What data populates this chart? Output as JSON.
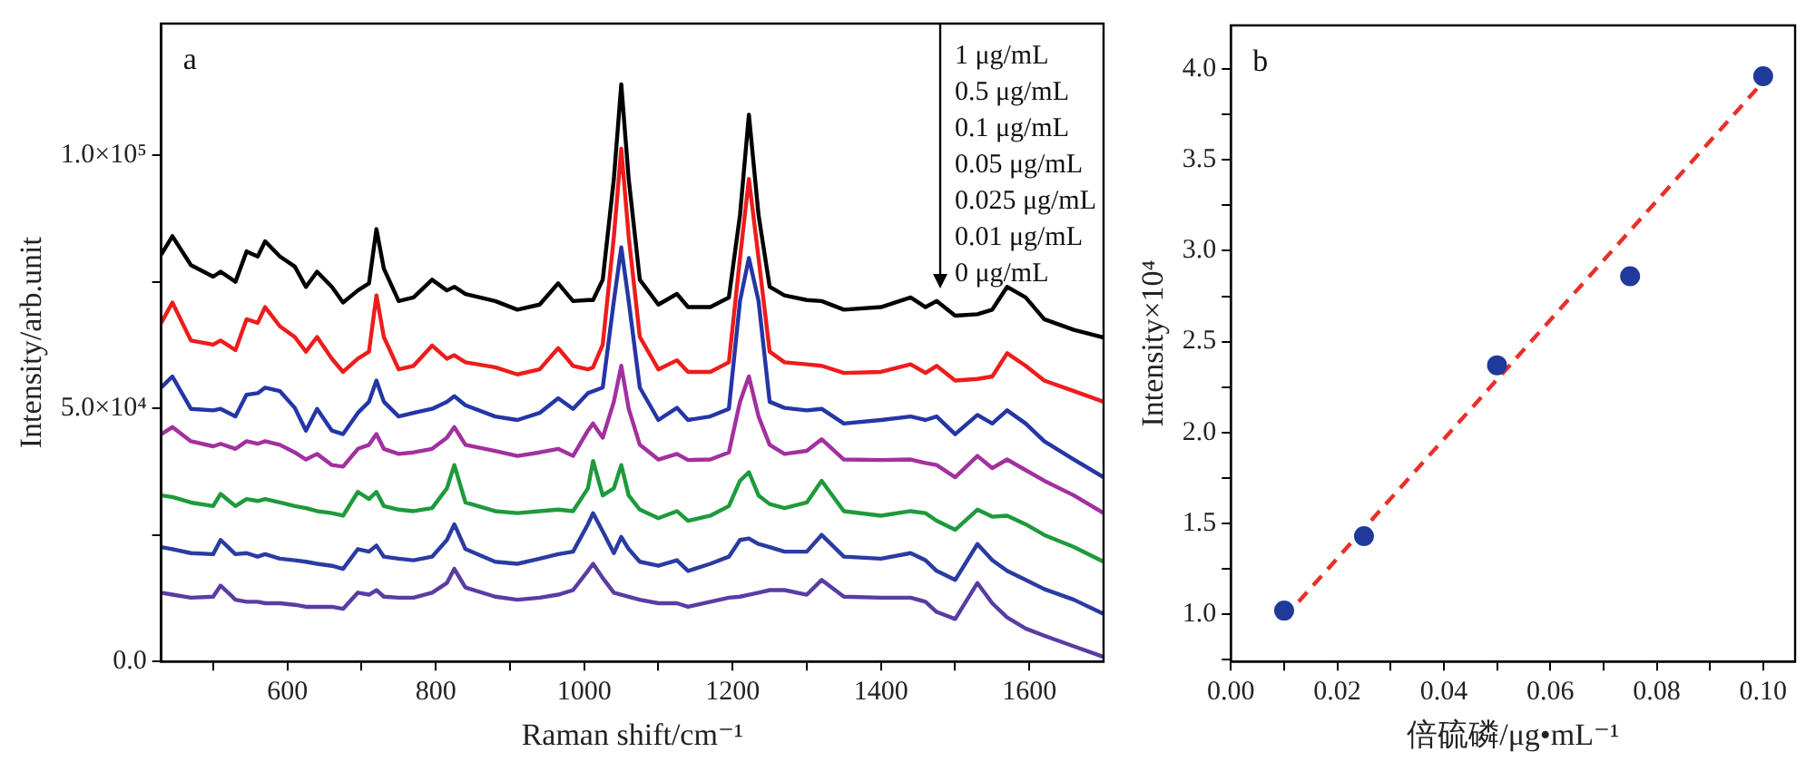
{
  "chart_data": [
    {
      "type": "line",
      "xlabel": "Raman shift/cm⁻¹",
      "ylabel": "Intensity/arb.unit",
      "annotations": [
        "a",
        "1 μg/mL",
        "0.5 μg/mL",
        "0.1 μg/mL",
        "0.05 μg/mL",
        "0.025 μg/mL",
        "0.01 μg/mL",
        "0 μg/mL"
      ],
      "x": [
        430,
        445,
        470,
        500,
        510,
        530,
        545,
        560,
        570,
        590,
        610,
        625,
        640,
        660,
        675,
        695,
        710,
        720,
        730,
        750,
        770,
        795,
        815,
        825,
        840,
        880,
        910,
        940,
        965,
        985,
        1005,
        1012,
        1025,
        1040,
        1050,
        1060,
        1075,
        1100,
        1125,
        1140,
        1170,
        1195,
        1210,
        1222,
        1235,
        1250,
        1270,
        1300,
        1320,
        1350,
        1400,
        1440,
        1460,
        1475,
        1500,
        1530,
        1550,
        1570,
        1595,
        1620,
        1660,
        1700
      ],
      "xlim": [
        430,
        1700
      ],
      "xticks": [
        {
          "value": 500,
          "label": null
        },
        600,
        {
          "value": 700,
          "label": null
        },
        800,
        {
          "value": 900,
          "label": null
        },
        1000,
        {
          "value": 1100,
          "label": null
        },
        1200,
        {
          "value": 1300,
          "label": null
        },
        1400,
        {
          "value": 1500,
          "label": null
        },
        1600
      ],
      "ylim": [
        0,
        126000
      ],
      "yticks": [
        {
          "value": 0,
          "label": "0.0"
        },
        {
          "value": 25000,
          "label": null
        },
        {
          "value": 50000,
          "label": "5.0×10⁴"
        },
        {
          "value": 75000,
          "label": null
        },
        {
          "value": 100000,
          "label": "1.0×10⁵"
        }
      ],
      "series": [
        {
          "color": "#000000",
          "values": [
            80400,
            84000,
            78300,
            76000,
            77000,
            75000,
            81000,
            80000,
            83000,
            80000,
            78000,
            74000,
            77000,
            74000,
            70900,
            73300,
            74700,
            85400,
            77600,
            71200,
            71900,
            75400,
            73300,
            74000,
            72600,
            71200,
            69500,
            70500,
            74700,
            71200,
            71400,
            71400,
            75400,
            95300,
            114000,
            95300,
            75400,
            70500,
            72600,
            70000,
            70000,
            71900,
            88200,
            108000,
            88200,
            74000,
            72300,
            71400,
            71200,
            69500,
            70000,
            71900,
            70000,
            71200,
            68300,
            68600,
            69500,
            74000,
            71900,
            67600,
            65500,
            64000
          ]
        },
        {
          "color": "#ee1c1c",
          "values": [
            66900,
            70900,
            63400,
            62600,
            63400,
            61500,
            67600,
            66900,
            70000,
            66200,
            64100,
            61200,
            64100,
            59800,
            57200,
            59800,
            61200,
            72300,
            64100,
            57700,
            58400,
            62400,
            59800,
            60500,
            59100,
            58100,
            56700,
            57700,
            61900,
            58400,
            57700,
            58100,
            62600,
            83900,
            101300,
            83900,
            64100,
            57700,
            59500,
            57200,
            57200,
            59100,
            79700,
            95300,
            79700,
            61200,
            59100,
            58700,
            58400,
            57000,
            57200,
            58700,
            57000,
            58400,
            55500,
            55800,
            56300,
            60900,
            58400,
            55500,
            53400,
            51300
          ]
        },
        {
          "color": "#2436a6",
          "values": [
            54100,
            56300,
            49900,
            49600,
            49900,
            48400,
            52700,
            53000,
            54100,
            53400,
            50100,
            45600,
            49900,
            45600,
            44900,
            49100,
            51300,
            55500,
            51300,
            48400,
            49100,
            49900,
            51300,
            52400,
            50600,
            48400,
            47700,
            49100,
            52000,
            49900,
            53000,
            53400,
            54100,
            71200,
            81800,
            71200,
            54100,
            47700,
            50100,
            47700,
            48400,
            49900,
            71200,
            79700,
            71200,
            51300,
            50100,
            49600,
            49900,
            47000,
            47700,
            48400,
            47700,
            48400,
            44900,
            48700,
            47000,
            49600,
            47000,
            43500,
            39900,
            36400
          ]
        },
        {
          "color": "#a2309e",
          "values": [
            44900,
            46300,
            43500,
            42500,
            43000,
            42000,
            43500,
            43000,
            43500,
            42800,
            41300,
            39900,
            41000,
            38800,
            38500,
            42000,
            42800,
            44900,
            42000,
            41000,
            41300,
            42000,
            44200,
            46300,
            42800,
            41600,
            40600,
            41300,
            42000,
            40600,
            45600,
            47000,
            44200,
            51300,
            58400,
            49900,
            42800,
            39900,
            41000,
            39800,
            39900,
            41300,
            51300,
            56300,
            48400,
            42800,
            41000,
            41600,
            43900,
            39900,
            39800,
            39900,
            39200,
            38800,
            36400,
            40600,
            38200,
            39900,
            37800,
            35700,
            32800,
            29300
          ]
        },
        {
          "color": "#1e9a3c",
          "values": [
            32800,
            32500,
            31400,
            30700,
            33100,
            30700,
            32100,
            31700,
            32100,
            31400,
            30700,
            30300,
            29700,
            29300,
            28800,
            33500,
            32100,
            33500,
            30700,
            30000,
            29700,
            30300,
            34200,
            38800,
            31400,
            29700,
            29300,
            29700,
            30000,
            29700,
            34200,
            39600,
            32800,
            34200,
            38800,
            32800,
            30000,
            28300,
            29700,
            27800,
            28800,
            30700,
            35700,
            37400,
            32800,
            31100,
            30300,
            31400,
            35700,
            29700,
            28800,
            29700,
            29300,
            27800,
            26000,
            30000,
            28600,
            28800,
            27100,
            25000,
            22600,
            19700
          ]
        },
        {
          "color": "#2a3ca2",
          "values": [
            22600,
            22200,
            21400,
            21200,
            24000,
            21200,
            21400,
            20700,
            21200,
            20300,
            20000,
            19700,
            19300,
            18900,
            18300,
            22200,
            21700,
            22900,
            20700,
            20300,
            20000,
            20700,
            24000,
            27100,
            22200,
            19700,
            19300,
            20300,
            21200,
            21700,
            27100,
            29300,
            25700,
            21400,
            24600,
            22200,
            19700,
            18900,
            20000,
            17900,
            19300,
            20700,
            24000,
            24300,
            23200,
            22600,
            21700,
            21700,
            25000,
            20700,
            20300,
            21400,
            20000,
            17900,
            16100,
            23200,
            20000,
            17900,
            16100,
            14300,
            12200,
            9400
          ]
        },
        {
          "color": "#5a3ca4",
          "values": [
            13600,
            13200,
            12600,
            12800,
            15000,
            12200,
            11800,
            11800,
            11500,
            11500,
            11200,
            10800,
            10800,
            10800,
            10400,
            13600,
            13200,
            14100,
            12800,
            12600,
            12600,
            13600,
            15500,
            18300,
            14600,
            12800,
            12200,
            12600,
            13200,
            14100,
            17900,
            19300,
            16500,
            13600,
            13200,
            12800,
            12200,
            11500,
            11500,
            10800,
            11800,
            12600,
            12800,
            13200,
            13600,
            14100,
            14100,
            13200,
            16100,
            12800,
            12600,
            12600,
            11800,
            9800,
            8400,
            15500,
            11500,
            8700,
            6500,
            5100,
            3000,
            900
          ]
        }
      ]
    },
    {
      "type": "scatter",
      "xlabel": "倍硫磷/μg•mL⁻¹",
      "ylabel": "Intensity×10⁴",
      "annotations": [
        "b"
      ],
      "xlim": [
        0,
        0.106
      ],
      "xticks": [
        {
          "value": 0,
          "label": "0.00"
        },
        {
          "value": 0.01,
          "label": null
        },
        {
          "value": 0.02,
          "label": "0.02"
        },
        {
          "value": 0.03,
          "label": null
        },
        {
          "value": 0.04,
          "label": "0.04"
        },
        {
          "value": 0.05,
          "label": null
        },
        {
          "value": 0.06,
          "label": "0.06"
        },
        {
          "value": 0.07,
          "label": null
        },
        {
          "value": 0.08,
          "label": "0.08"
        },
        {
          "value": 0.09,
          "label": null
        },
        {
          "value": 0.1,
          "label": "0.10"
        }
      ],
      "ylim": [
        0.74,
        4.24
      ],
      "yticks": [
        {
          "value": 0.75,
          "label": null
        },
        {
          "value": 1,
          "label": "1.0"
        },
        {
          "value": 1.25,
          "label": null
        },
        {
          "value": 1.5,
          "label": "1.5"
        },
        {
          "value": 1.75,
          "label": null
        },
        {
          "value": 2,
          "label": "2.0"
        },
        {
          "value": 2.25,
          "label": null
        },
        {
          "value": 2.5,
          "label": "2.5"
        },
        {
          "value": 2.75,
          "label": null
        },
        {
          "value": 3,
          "label": "3.0"
        },
        {
          "value": 3.25,
          "label": null
        },
        {
          "value": 3.5,
          "label": "3.5"
        },
        {
          "value": 3.75,
          "label": null
        },
        {
          "value": 4,
          "label": "4.0"
        }
      ],
      "series": [
        {
          "color": "#1f3a9a",
          "marker": "circle",
          "x": [
            0.01,
            0.025,
            0.05,
            0.075,
            0.1
          ],
          "values": [
            1.02,
            1.43,
            2.37,
            2.86,
            3.96
          ]
        },
        {
          "type": "line",
          "color": "#e8302a",
          "line_style": "dashed",
          "x": [
            0.01,
            0.1
          ],
          "values": [
            0.98,
            3.93
          ]
        }
      ]
    }
  ]
}
